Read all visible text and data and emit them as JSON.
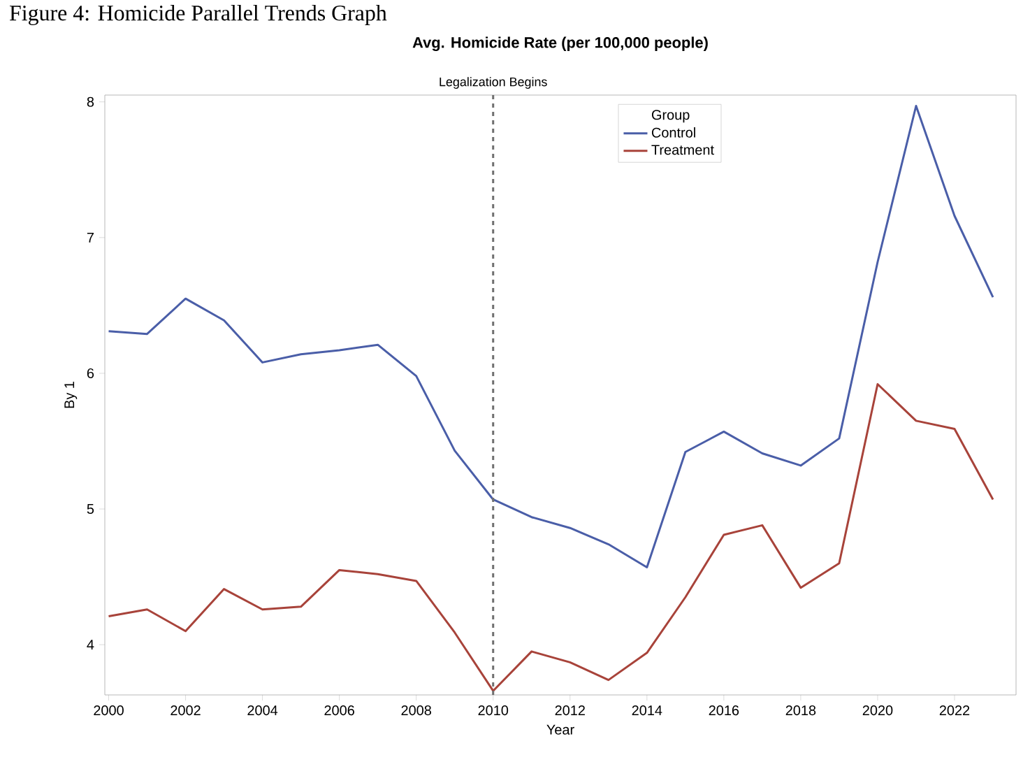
{
  "chart_data": {
    "type": "line",
    "title": "Avg. Homicide Rate (per 100,000 people)",
    "xlabel": "Year",
    "ylabel": "By 1",
    "legend_title": "Group",
    "annotations": [
      "Figure 4: Homicide Parallel Trends Graph"
    ],
    "x": [
      2000,
      2001,
      2002,
      2003,
      2004,
      2005,
      2006,
      2007,
      2008,
      2009,
      2010,
      2011,
      2012,
      2013,
      2014,
      2015,
      2016,
      2017,
      2018,
      2019,
      2020,
      2021,
      2022,
      2023
    ],
    "series": [
      {
        "name": "Control",
        "color": "#4a5ea8",
        "values": [
          6.31,
          6.29,
          6.55,
          6.39,
          6.08,
          6.14,
          6.17,
          6.21,
          5.98,
          5.43,
          5.07,
          4.94,
          4.86,
          4.74,
          4.57,
          5.42,
          5.57,
          5.41,
          5.32,
          5.52,
          6.82,
          7.97,
          7.16,
          6.56
        ]
      },
      {
        "name": "Treatment",
        "color": "#a8433a",
        "values": [
          4.21,
          4.26,
          4.1,
          4.41,
          4.26,
          4.28,
          4.55,
          4.52,
          4.47,
          4.09,
          3.66,
          3.95,
          3.87,
          3.74,
          3.94,
          4.35,
          4.81,
          4.88,
          4.42,
          4.6,
          5.92,
          5.65,
          5.59,
          5.07
        ]
      }
    ],
    "xlim": [
      1999.9,
      2023.6
    ],
    "ylim": [
      3.63,
      8.05
    ],
    "xticks": [
      2000,
      2002,
      2004,
      2006,
      2008,
      2010,
      2012,
      2014,
      2016,
      2018,
      2020,
      2022
    ],
    "yticks": [
      4,
      5,
      6,
      7,
      8
    ],
    "ref_lines": [
      {
        "axis": "x",
        "value": 2010,
        "label": "Legalization Begins",
        "color": "#707070",
        "line_style": "dashed"
      }
    ],
    "grid": false,
    "legend": "top",
    "marker": "none",
    "line_style": "solid"
  }
}
